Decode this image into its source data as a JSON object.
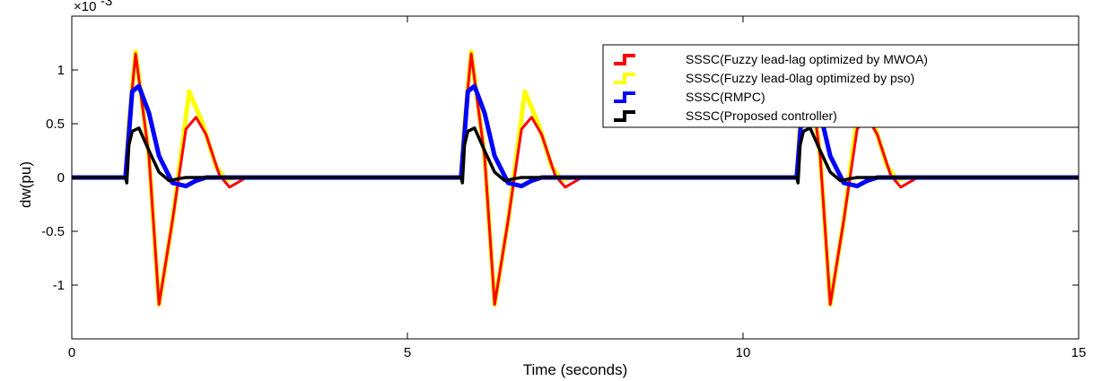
{
  "chart_data": {
    "type": "line",
    "title": "",
    "xlabel": "Time (seconds)",
    "ylabel": "dw(pu)",
    "xlim": [
      0,
      15
    ],
    "ylim": [
      -0.0015,
      0.0015
    ],
    "x_ticks": [
      0,
      5,
      10,
      15
    ],
    "x_tick_labels": [
      "0",
      "5",
      "10",
      "15"
    ],
    "y_ticks": [
      0.001,
      0.0005,
      0,
      -0.0005,
      -0.001
    ],
    "y_tick_labels": [
      "1",
      "0.5",
      "0",
      "-0.5",
      "-1"
    ],
    "y_exponent": {
      "base": "×10",
      "power": "-3"
    },
    "grid": false,
    "legend_position": "top-right",
    "series": [
      {
        "name": "SSSC(Fuzzy lead-lag optimized by MWOA)",
        "color": "#ff0000",
        "x": [
          0,
          0.8,
          0.85,
          0.95,
          1.15,
          1.3,
          1.5,
          1.7,
          1.85,
          2.0,
          2.2,
          2.35,
          2.6,
          5.8,
          5.85,
          5.95,
          6.15,
          6.3,
          6.5,
          6.7,
          6.85,
          7.0,
          7.2,
          7.35,
          7.6,
          10.8,
          10.85,
          10.95,
          11.15,
          11.3,
          11.5,
          11.7,
          11.85,
          12.0,
          12.2,
          12.35,
          12.6,
          15
        ],
        "y": [
          0,
          0,
          0.0005,
          0.00115,
          0.0002,
          -0.00118,
          -0.0004,
          0.00045,
          0.00056,
          0.0004,
          2e-05,
          -9e-05,
          0,
          0,
          0.0005,
          0.00115,
          0.0002,
          -0.00118,
          -0.0004,
          0.00045,
          0.00056,
          0.0004,
          2e-05,
          -9e-05,
          0,
          0,
          0.0005,
          0.00115,
          0.0002,
          -0.00118,
          -0.0004,
          0.00045,
          0.00056,
          0.0004,
          2e-05,
          -9e-05,
          0,
          0
        ]
      },
      {
        "name": "SSSC(Fuzzy lead-0lag optimized by pso)",
        "color": "#ffff00",
        "x": [
          0,
          0.8,
          0.85,
          0.95,
          1.15,
          1.3,
          1.5,
          1.75,
          1.95,
          2.15,
          2.3,
          2.45,
          5.8,
          5.85,
          5.95,
          6.15,
          6.3,
          6.5,
          6.75,
          6.95,
          7.15,
          7.3,
          7.45,
          10.8,
          10.85,
          10.95,
          11.15,
          11.3,
          11.5,
          11.75,
          11.95,
          12.15,
          12.3,
          12.45,
          15
        ],
        "y": [
          0,
          0,
          0.0005,
          0.00117,
          0.0002,
          -0.00118,
          -0.0004,
          0.0008,
          0.0005,
          0.0001,
          -2e-05,
          0,
          0,
          0.0005,
          0.00117,
          0.0002,
          -0.00118,
          -0.0004,
          0.0008,
          0.0005,
          0.0001,
          -2e-05,
          0,
          0,
          0.0005,
          0.00117,
          0.0002,
          -0.00118,
          -0.0004,
          0.0008,
          0.0005,
          0.0001,
          -2e-05,
          0,
          0
        ]
      },
      {
        "name": "SSSC(RMPC)",
        "color": "#0000ff",
        "x": [
          0,
          0.8,
          0.85,
          0.9,
          1.0,
          1.15,
          1.3,
          1.5,
          1.7,
          1.85,
          2.0,
          5.8,
          5.85,
          5.9,
          6.0,
          6.15,
          6.3,
          6.5,
          6.7,
          6.85,
          7.0,
          10.8,
          10.85,
          10.9,
          11.0,
          11.15,
          11.3,
          11.5,
          11.7,
          11.85,
          12.0,
          15
        ],
        "y": [
          0,
          0,
          0.0004,
          0.0008,
          0.00085,
          0.0006,
          0.0002,
          -5e-05,
          -8e-05,
          -3e-05,
          0,
          0,
          0.0004,
          0.0008,
          0.00085,
          0.0006,
          0.0002,
          -5e-05,
          -8e-05,
          -3e-05,
          0,
          0,
          0.0004,
          0.0008,
          0.00085,
          0.0006,
          0.0002,
          -5e-05,
          -8e-05,
          -3e-05,
          0,
          0
        ]
      },
      {
        "name": "SSSC(Proposed controller)",
        "color": "#000000",
        "x": [
          0,
          0.8,
          0.82,
          0.85,
          0.9,
          1.0,
          1.15,
          1.3,
          1.45,
          1.6,
          1.7,
          5.8,
          5.82,
          5.85,
          5.9,
          6.0,
          6.15,
          6.3,
          6.45,
          6.6,
          6.7,
          10.8,
          10.82,
          10.85,
          10.9,
          11.0,
          11.15,
          11.3,
          11.45,
          11.6,
          11.7,
          15
        ],
        "y": [
          0,
          0,
          -5e-05,
          0.0003,
          0.00043,
          0.00046,
          0.00025,
          5e-05,
          -3e-05,
          -1e-05,
          0,
          0,
          -5e-05,
          0.0003,
          0.00043,
          0.00046,
          0.00025,
          5e-05,
          -3e-05,
          -1e-05,
          0,
          0,
          -5e-05,
          0.0003,
          0.00043,
          0.00046,
          0.00025,
          5e-05,
          -3e-05,
          -1e-05,
          0,
          0
        ]
      }
    ]
  }
}
